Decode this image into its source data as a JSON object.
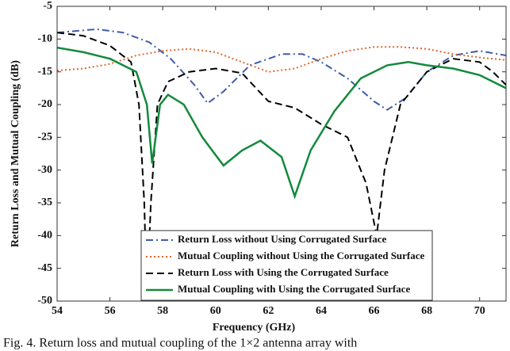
{
  "chart_data": {
    "type": "line",
    "xlabel": "Frequency (GHz)",
    "ylabel": "Return Loss and Mutual Coupling (dB)",
    "caption": "Fig. 4. Return loss and mutual coupling of the 1×2 antenna array with",
    "xlim": [
      54,
      71
    ],
    "xticks": [
      54,
      56,
      58,
      60,
      62,
      64,
      66,
      68,
      70
    ],
    "ylim": [
      -50,
      -5
    ],
    "yticks": [
      -50,
      -45,
      -40,
      -35,
      -30,
      -25,
      -20,
      -15,
      -10,
      -5
    ],
    "grid": false,
    "legend": "lower center",
    "series": [
      {
        "name": "Return Loss without Using Corrugated Surface",
        "color": "#3f5ba9",
        "dash": "dashdot",
        "x": [
          54,
          55.5,
          56.5,
          57.5,
          58.3,
          59.2,
          59.7,
          60.3,
          61.3,
          62.5,
          63.3,
          64,
          65,
          66,
          66.5,
          67.2,
          68,
          69,
          70,
          71
        ],
        "values": [
          -9,
          -8.5,
          -9,
          -10.5,
          -13,
          -17,
          -19.8,
          -18,
          -14,
          -12.3,
          -12.3,
          -13.5,
          -16,
          -19.5,
          -20.8,
          -19,
          -15,
          -12.5,
          -11.8,
          -12.5
        ]
      },
      {
        "name": "Mutual Coupling without Using the Corrugated Surface",
        "color": "#e0672a",
        "dash": "dot",
        "x": [
          54,
          55,
          56,
          57,
          58,
          59,
          60,
          61,
          62,
          63,
          64,
          65,
          66,
          67,
          68,
          69,
          70,
          71
        ],
        "values": [
          -14.8,
          -14.5,
          -13.8,
          -12.5,
          -11.8,
          -11.5,
          -12,
          -13.5,
          -15,
          -14.5,
          -13,
          -11.8,
          -11.2,
          -11.2,
          -11.5,
          -12.3,
          -12.8,
          -13.2
        ]
      },
      {
        "name": "Return Loss with Using the Corrugated Surface",
        "color": "#000000",
        "dash": "dash",
        "x": [
          54,
          55,
          56,
          56.8,
          57.1,
          57.3,
          57.4,
          57.55,
          57.8,
          58.2,
          59,
          60,
          61,
          62,
          63,
          64,
          65,
          65.7,
          66.1,
          66.4,
          67,
          68,
          69,
          70,
          70.5,
          71
        ],
        "values": [
          -9,
          -9.5,
          -11,
          -13.5,
          -20,
          -35,
          -50,
          -35,
          -20,
          -16.5,
          -15,
          -14.5,
          -15.2,
          -19.5,
          -20.5,
          -23,
          -25,
          -32,
          -40,
          -30,
          -20,
          -15,
          -13,
          -13.5,
          -15,
          -17
        ]
      },
      {
        "name": "Mutual Coupling with Using the Corrugated Surface",
        "color": "#138a3c",
        "dash": "solid",
        "x": [
          54,
          55,
          56,
          57,
          57.4,
          57.6,
          57.9,
          58.2,
          58.8,
          59.5,
          60.3,
          61,
          61.7,
          62.5,
          63,
          63.6,
          64.5,
          65.5,
          66.5,
          67.3,
          68,
          69,
          70,
          71
        ],
        "values": [
          -11.3,
          -12,
          -13,
          -15,
          -20,
          -29,
          -20,
          -18.5,
          -20,
          -25,
          -29.3,
          -27,
          -25.5,
          -28,
          -34,
          -27,
          -21,
          -16,
          -14,
          -13.5,
          -14,
          -14.5,
          -15.5,
          -17.5
        ]
      }
    ]
  }
}
